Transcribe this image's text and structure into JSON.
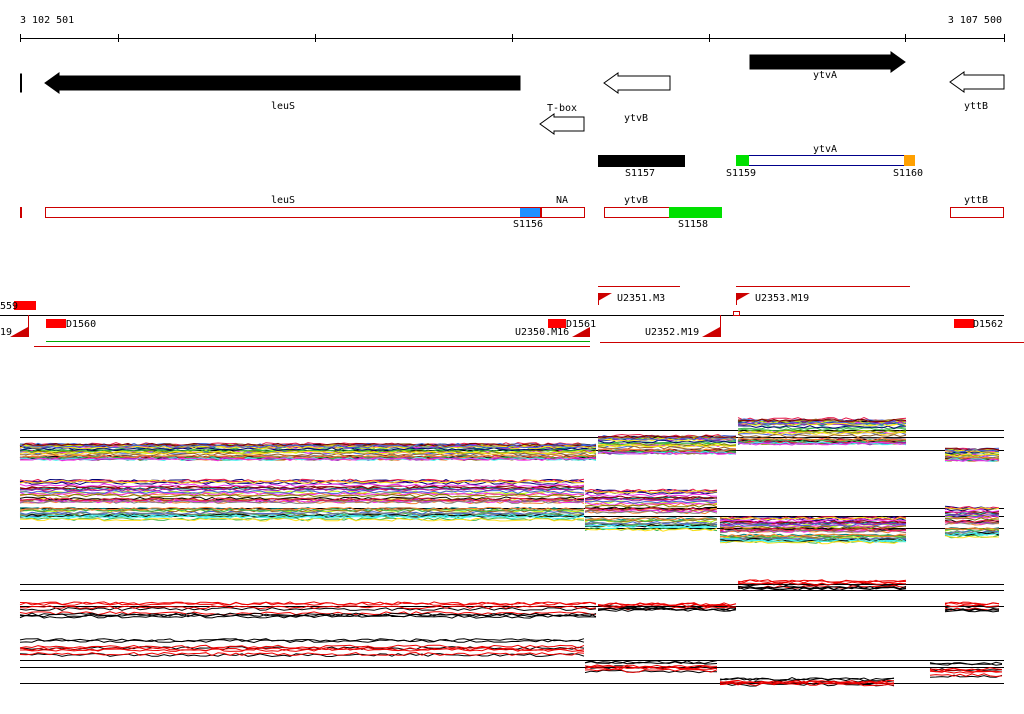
{
  "ruler": {
    "start": "3 102 501",
    "end": "3 107 500"
  },
  "genes": {
    "leuS": "leuS",
    "tbox": "T-box",
    "ytvB": "ytvB",
    "ytvA": "ytvA",
    "yttB": "yttB"
  },
  "segments": {
    "s1157": "S1157",
    "ytvA": "ytvA",
    "s1159": "S1159",
    "s1160": "S1160",
    "leuS": "leuS",
    "na": "NA",
    "s1156": "S1156",
    "ytvB": "ytvB",
    "s1158": "S1158",
    "yttB": "yttB"
  },
  "transcripts": {
    "u2351": "U2351.M3",
    "u2353": "U2353.M19",
    "left1": "559",
    "left2": "19",
    "d1560": "D1560",
    "u2350": "U2350.M16",
    "d1561": "D1561",
    "u2352": "U2352.M19",
    "d1562": "D1562"
  }
}
